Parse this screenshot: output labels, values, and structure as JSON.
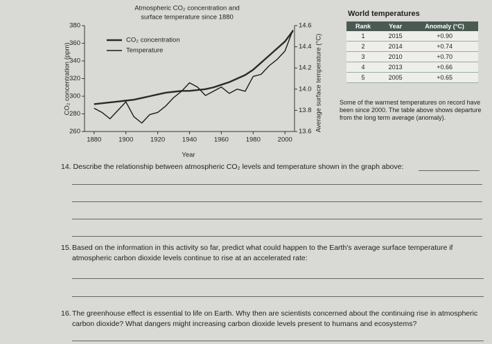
{
  "chart_data": {
    "type": "line",
    "title": "Atmospheric CO₂ concentration and",
    "subtitle": "surface temperature since 1880",
    "x_label": "Year",
    "y_label": "CO₂ concentration (ppm)",
    "y2_label": "Average surface temperature (°C)",
    "x": [
      1880,
      1885,
      1890,
      1895,
      1900,
      1905,
      1910,
      1915,
      1920,
      1925,
      1930,
      1935,
      1940,
      1945,
      1950,
      1955,
      1960,
      1965,
      1970,
      1975,
      1980,
      1985,
      1990,
      1995,
      2000,
      2005
    ],
    "series": [
      {
        "name": "CO₂ concentration",
        "color": "#2a2a2a",
        "values": [
          291,
          292,
          293,
          294,
          295,
          296,
          298,
          300,
          302,
          304,
          305,
          306,
          306,
          307,
          308,
          310,
          313,
          316,
          320,
          324,
          330,
          338,
          346,
          354,
          362,
          374
        ]
      },
      {
        "name": "Temperature",
        "color": "#1a1a1a",
        "axis": "y2",
        "values": [
          13.82,
          13.78,
          13.72,
          13.8,
          13.88,
          13.74,
          13.68,
          13.76,
          13.78,
          13.84,
          13.92,
          13.98,
          14.06,
          14.02,
          13.94,
          13.98,
          14.02,
          13.96,
          14.0,
          13.98,
          14.12,
          14.14,
          14.22,
          14.28,
          14.36,
          14.56
        ]
      }
    ],
    "xlim": [
      1874,
      2006
    ],
    "xticks": [
      1880,
      1900,
      1920,
      1940,
      1960,
      1980,
      2000
    ],
    "ylim": [
      260,
      380
    ],
    "yticks": [
      260,
      280,
      300,
      320,
      340,
      360,
      380
    ],
    "y2lim": [
      13.6,
      14.6
    ],
    "y2ticks": [
      13.6,
      13.8,
      {
        "value": 14,
        "label": "14.0"
      },
      14.2,
      14.4,
      14.6
    ],
    "legend": "upper left",
    "grid": false
  },
  "table": {
    "title": "World temperatures",
    "headers": [
      "Rank",
      "Year",
      "Anomaly (°C)"
    ],
    "rows": [
      [
        1,
        2015,
        "+0.90"
      ],
      [
        2,
        2014,
        "+0.74"
      ],
      [
        3,
        2010,
        "+0.70"
      ],
      [
        4,
        2013,
        "+0.66"
      ],
      [
        5,
        2005,
        "+0.65"
      ]
    ]
  },
  "note": "Some of the warmest temperatures on record have been since 2000. The table above shows departure from the long term average (anomaly).",
  "questions": [
    {
      "number": "14.",
      "text": "Describe the relationship between atmospheric CO₂ levels and temperature shown in the graph above:"
    },
    {
      "number": "15.",
      "text": "Based on the information in this activity so far, predict what could happen to the Earth's average surface temperature if atmospheric carbon dioxide levels continue to rise at an accelerated rate:"
    },
    {
      "number": "16.",
      "text": "The greenhouse effect is essential to life on Earth. Why then are scientists concerned about the continuing rise in atmospheric carbon dioxide? What dangers might increasing carbon dioxide levels present to humans and ecosystems?"
    }
  ]
}
